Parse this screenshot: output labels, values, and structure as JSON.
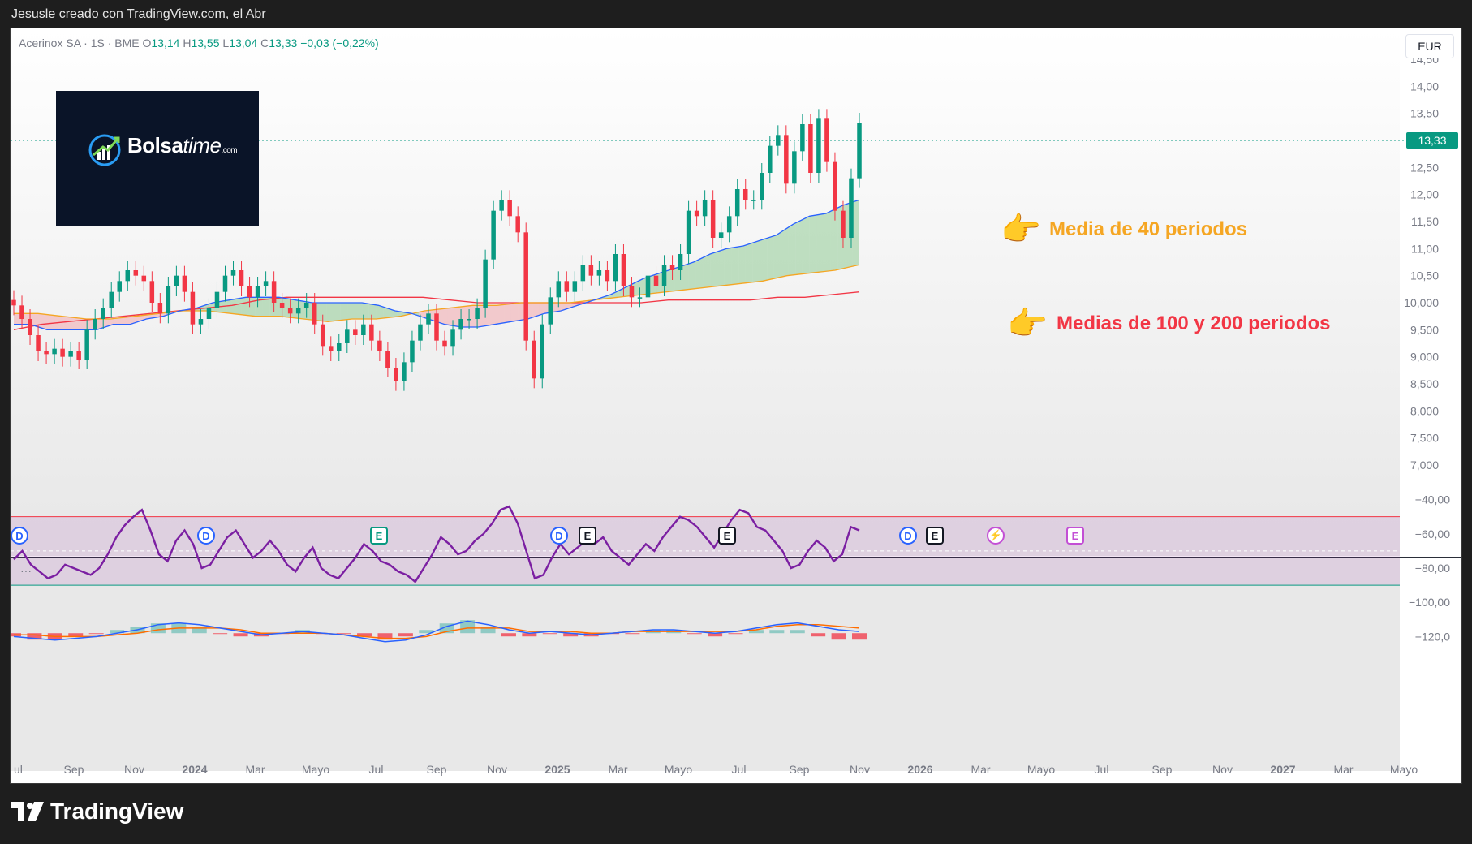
{
  "header": {
    "caption": "Jesusle creado con TradingView.com, el Abr"
  },
  "legend": {
    "symbol": "Acerinox SA · 1S · BME",
    "o_label": "O",
    "o": "13,14",
    "h_label": "H",
    "h": "13,55",
    "l_label": "L",
    "l": "13,04",
    "c_label": "C",
    "c": "13,33",
    "change": "−0,03 (−0,22%)"
  },
  "currency": "EUR",
  "logo": {
    "name": "Bolsa",
    "name_italic": "time",
    "suffix": ".com"
  },
  "annotations": {
    "ma40": "Media de 40 periodos",
    "ma100_200": "Medias de 100 y 200 periodos"
  },
  "brand": "TradingView",
  "dots": "···",
  "last_price": "13,33",
  "events": [
    {
      "type": "D",
      "cls": "ev-d"
    },
    {
      "type": "D",
      "cls": "ev-d"
    },
    {
      "type": "E",
      "cls": "ev-eg"
    },
    {
      "type": "D",
      "cls": "ev-d"
    },
    {
      "type": "E",
      "cls": "ev-e"
    },
    {
      "type": "E",
      "cls": "ev-e"
    },
    {
      "type": "D",
      "cls": "ev-d"
    },
    {
      "type": "E",
      "cls": "ev-e"
    },
    {
      "type": "⚡",
      "cls": "ev-s"
    },
    {
      "type": "E",
      "cls": "ev-ep"
    }
  ],
  "chart_data": [
    {
      "type": "candlestick",
      "title": "Acerinox SA · 1S · BME",
      "y_axis": {
        "ticks": [
          "14,50",
          "14,00",
          "13,50",
          "12,50",
          "12,00",
          "11,50",
          "11,00",
          "10,50",
          "10,000",
          "9,500",
          "9,000",
          "8,500",
          "8,000",
          "7,500",
          "7,000"
        ],
        "range": [
          7.0,
          14.5
        ]
      },
      "x_axis": {
        "ticks": [
          "ul",
          "Sep",
          "Nov",
          "2024",
          "Mar",
          "Mayo",
          "Jul",
          "Sep",
          "Nov",
          "2025",
          "Mar",
          "Mayo",
          "Jul",
          "Sep",
          "Nov",
          "2026",
          "Mar",
          "Mayo",
          "Jul",
          "Sep",
          "Nov",
          "2027",
          "Mar",
          "Mayo"
        ]
      },
      "close_series": [
        9.95,
        9.7,
        9.4,
        9.1,
        9.05,
        9.15,
        9.0,
        9.1,
        8.95,
        9.5,
        9.7,
        9.9,
        10.2,
        10.4,
        10.6,
        10.5,
        10.4,
        10.0,
        9.8,
        10.3,
        10.5,
        10.2,
        9.6,
        9.7,
        9.9,
        10.2,
        10.5,
        10.6,
        10.3,
        10.1,
        10.3,
        10.4,
        10.0,
        9.9,
        9.8,
        9.9,
        10.0,
        9.6,
        9.2,
        9.1,
        9.25,
        9.5,
        9.4,
        9.6,
        9.3,
        9.1,
        8.8,
        8.55,
        8.9,
        9.3,
        9.6,
        9.8,
        9.3,
        9.2,
        9.5,
        9.7,
        9.7,
        9.9,
        10.8,
        11.7,
        11.9,
        11.6,
        11.3,
        9.3,
        8.6,
        9.6,
        10.1,
        10.4,
        10.2,
        10.4,
        10.7,
        10.5,
        10.6,
        10.4,
        10.9,
        10.3,
        10.1,
        10.1,
        10.5,
        10.3,
        10.7,
        10.6,
        10.9,
        11.7,
        11.6,
        11.9,
        11.2,
        11.3,
        11.6,
        12.1,
        11.9,
        11.9,
        12.4,
        12.9,
        13.1,
        12.2,
        12.8,
        13.3,
        12.4,
        13.4,
        12.6,
        11.7,
        11.2,
        12.3,
        13.33
      ],
      "ma40": [
        9.6,
        9.6,
        9.5,
        9.5,
        9.5,
        9.5,
        9.6,
        9.6,
        9.7,
        9.75,
        9.85,
        9.9,
        10.0,
        10.05,
        10.1,
        10.1,
        10.1,
        10.05,
        10.0,
        10.0,
        10.0,
        10.0,
        9.95,
        9.85,
        9.8,
        9.7,
        9.6,
        9.55,
        9.55,
        9.6,
        9.65,
        9.7,
        9.8,
        9.85,
        9.95,
        10.05,
        10.15,
        10.3,
        10.45,
        10.55,
        10.65,
        10.75,
        10.9,
        11.0,
        11.05,
        11.15,
        11.25,
        11.45,
        11.6,
        11.65,
        11.8,
        11.9
      ],
      "ma100": [
        9.8,
        9.8,
        9.75,
        9.7,
        9.7,
        9.75,
        9.8,
        9.85,
        9.85,
        9.8,
        9.75,
        9.75,
        9.7,
        9.65,
        9.7,
        9.7,
        9.75,
        9.85,
        9.9,
        9.95,
        9.95,
        10.0,
        10.0,
        10.0,
        10.05,
        10.1,
        10.15,
        10.2,
        10.25,
        10.3,
        10.35,
        10.4,
        10.5,
        10.55,
        10.6,
        10.7
      ],
      "ma200": [
        9.5,
        9.6,
        9.65,
        9.7,
        9.75,
        9.8,
        9.85,
        9.9,
        9.95,
        10.05,
        10.1,
        10.1,
        10.1,
        10.1,
        10.1,
        10.1,
        10.05,
        10.0,
        10.0,
        10.0,
        10.0,
        10.0,
        10.0,
        10.0,
        10.05,
        10.05,
        10.05,
        10.05,
        10.1,
        10.1,
        10.15,
        10.2
      ]
    },
    {
      "type": "line",
      "title": "",
      "y_axis": {
        "ticks": [
          "−40,00",
          "−60,00",
          "−80,00",
          "−100,00",
          "−120,0"
        ],
        "range": [
          -125,
          -35
        ],
        "band": [
          -50,
          -90
        ],
        "midline": -70
      },
      "values": [
        -75,
        -70,
        -78,
        -82,
        -86,
        -84,
        -78,
        -80,
        -82,
        -84,
        -80,
        -72,
        -62,
        -55,
        -50,
        -46,
        -58,
        -72,
        -76,
        -64,
        -58,
        -66,
        -80,
        -78,
        -70,
        -62,
        -58,
        -66,
        -74,
        -70,
        -64,
        -70,
        -78,
        -82,
        -74,
        -68,
        -80,
        -84,
        -86,
        -80,
        -74,
        -66,
        -70,
        -76,
        -78,
        -82,
        -84,
        -88,
        -80,
        -72,
        -62,
        -66,
        -72,
        -70,
        -64,
        -60,
        -54,
        -46,
        -44,
        -54,
        -70,
        -86,
        -84,
        -74,
        -66,
        -72,
        -68,
        -64,
        -66,
        -62,
        -70,
        -74,
        -78,
        -72,
        -66,
        -70,
        -62,
        -56,
        -50,
        -52,
        -56,
        -62,
        -68,
        -60,
        -52,
        -46,
        -48,
        -56,
        -58,
        -64,
        -70,
        -80,
        -78,
        -70,
        -64,
        -68,
        -76,
        -72,
        -56,
        -58
      ],
      "macd": [
        -120,
        -121,
        -122,
        -121,
        -120,
        -118,
        -116,
        -113,
        -112,
        -113,
        -115,
        -117,
        -119,
        -118,
        -117,
        -118,
        -119,
        -121,
        -123,
        -122,
        -119,
        -114,
        -111,
        -113,
        -116,
        -118,
        -117,
        -118,
        -119,
        -118,
        -117,
        -116,
        -116,
        -117,
        -118,
        -117,
        -115,
        -113,
        -112,
        -114,
        -116,
        -117
      ],
      "signal": [
        -119,
        -119,
        -120,
        -120,
        -120,
        -119,
        -118,
        -116,
        -115,
        -115,
        -115,
        -116,
        -118,
        -118,
        -118,
        -118,
        -119,
        -120,
        -121,
        -121,
        -120,
        -117,
        -115,
        -115,
        -115,
        -117,
        -117,
        -117,
        -118,
        -118,
        -117,
        -117,
        -117,
        -117,
        -117,
        -117,
        -116,
        -114,
        -113,
        -113,
        -114,
        -115
      ]
    }
  ]
}
